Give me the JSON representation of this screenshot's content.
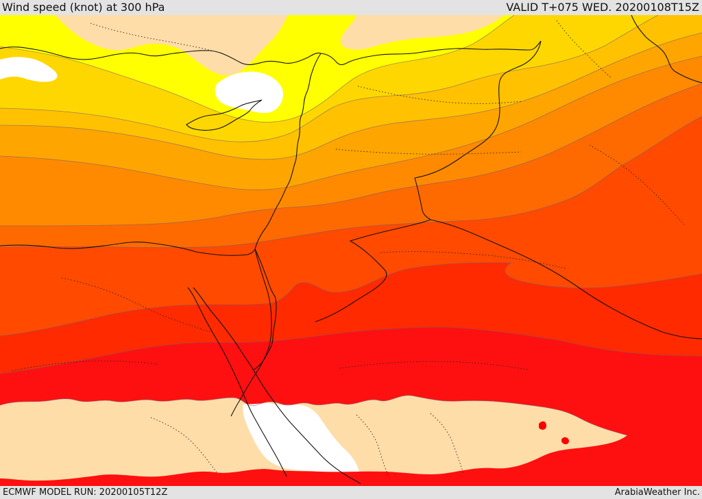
{
  "header": {
    "title": "Wind speed (knot) at 300 hPa",
    "valid": "VALID T+075 WED. 20200108T15Z"
  },
  "footer": {
    "model_run": "ECMWF MODEL RUN: 20200105T12Z",
    "provider": "ArabiaWeather Inc."
  },
  "legend_colors": [
    "#ffffff",
    "#fedda8",
    "#ffff00",
    "#ffd700",
    "#ffc100",
    "#ffa500",
    "#ff8a00",
    "#ff6a00",
    "#ff4a00",
    "#ff2a00",
    "#ff1010",
    "#ff0000"
  ]
}
